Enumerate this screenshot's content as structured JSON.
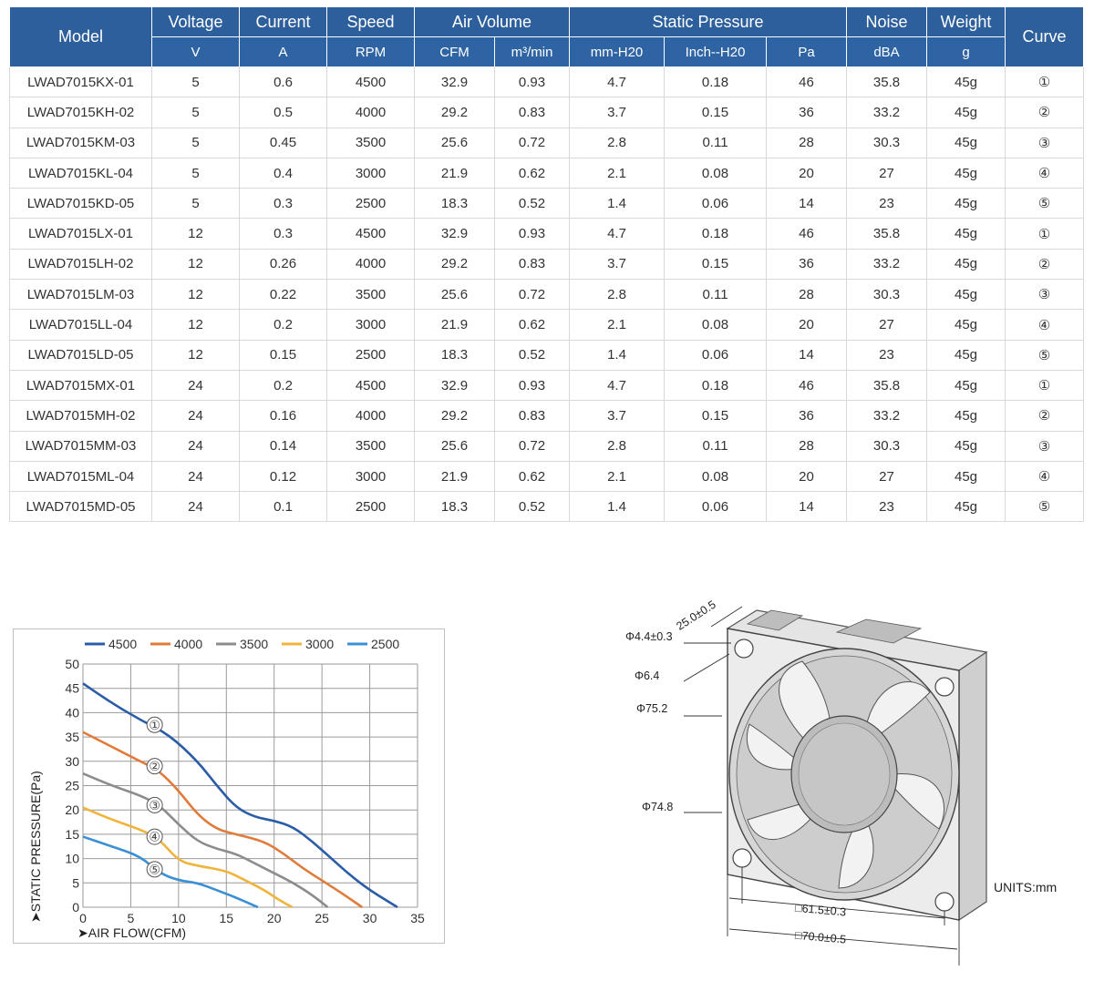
{
  "table": {
    "headers": {
      "model": "Model",
      "voltage": "Voltage",
      "current": "Current",
      "speed": "Speed",
      "air_volume": "Air Volume",
      "static_pressure": "Static Pressure",
      "noise": "Noise",
      "weight": "Weight",
      "curve": "Curve"
    },
    "units": {
      "v": "V",
      "a": "A",
      "rpm": "RPM",
      "cfm": "CFM",
      "m3min": "m³/min",
      "mmh2o": "mm-H20",
      "inchh2o": "Inch--H20",
      "pa": "Pa",
      "dba": "dBA",
      "g": "g"
    },
    "rows": [
      [
        "LWAD7015KX-01",
        "5",
        "0.6",
        "4500",
        "32.9",
        "0.93",
        "4.7",
        "0.18",
        "46",
        "35.8",
        "45g",
        "①"
      ],
      [
        "LWAD7015KH-02",
        "5",
        "0.5",
        "4000",
        "29.2",
        "0.83",
        "3.7",
        "0.15",
        "36",
        "33.2",
        "45g",
        "②"
      ],
      [
        "LWAD7015KM-03",
        "5",
        "0.45",
        "3500",
        "25.6",
        "0.72",
        "2.8",
        "0.11",
        "28",
        "30.3",
        "45g",
        "③"
      ],
      [
        "LWAD7015KL-04",
        "5",
        "0.4",
        "3000",
        "21.9",
        "0.62",
        "2.1",
        "0.08",
        "20",
        "27",
        "45g",
        "④"
      ],
      [
        "LWAD7015KD-05",
        "5",
        "0.3",
        "2500",
        "18.3",
        "0.52",
        "1.4",
        "0.06",
        "14",
        "23",
        "45g",
        "⑤"
      ],
      [
        "LWAD7015LX-01",
        "12",
        "0.3",
        "4500",
        "32.9",
        "0.93",
        "4.7",
        "0.18",
        "46",
        "35.8",
        "45g",
        "①"
      ],
      [
        "LWAD7015LH-02",
        "12",
        "0.26",
        "4000",
        "29.2",
        "0.83",
        "3.7",
        "0.15",
        "36",
        "33.2",
        "45g",
        "②"
      ],
      [
        "LWAD7015LM-03",
        "12",
        "0.22",
        "3500",
        "25.6",
        "0.72",
        "2.8",
        "0.11",
        "28",
        "30.3",
        "45g",
        "③"
      ],
      [
        "LWAD7015LL-04",
        "12",
        "0.2",
        "3000",
        "21.9",
        "0.62",
        "2.1",
        "0.08",
        "20",
        "27",
        "45g",
        "④"
      ],
      [
        "LWAD7015LD-05",
        "12",
        "0.15",
        "2500",
        "18.3",
        "0.52",
        "1.4",
        "0.06",
        "14",
        "23",
        "45g",
        "⑤"
      ],
      [
        "LWAD7015MX-01",
        "24",
        "0.2",
        "4500",
        "32.9",
        "0.93",
        "4.7",
        "0.18",
        "46",
        "35.8",
        "45g",
        "①"
      ],
      [
        "LWAD7015MH-02",
        "24",
        "0.16",
        "4000",
        "29.2",
        "0.83",
        "3.7",
        "0.15",
        "36",
        "33.2",
        "45g",
        "②"
      ],
      [
        "LWAD7015MM-03",
        "24",
        "0.14",
        "3500",
        "25.6",
        "0.72",
        "2.8",
        "0.11",
        "28",
        "30.3",
        "45g",
        "③"
      ],
      [
        "LWAD7015ML-04",
        "24",
        "0.12",
        "3000",
        "21.9",
        "0.62",
        "2.1",
        "0.08",
        "20",
        "27",
        "45g",
        "④"
      ],
      [
        "LWAD7015MD-05",
        "24",
        "0.1",
        "2500",
        "18.3",
        "0.52",
        "1.4",
        "0.06",
        "14",
        "23",
        "45g",
        "⑤"
      ]
    ],
    "colors": {
      "header_bg": "#2c5f9c",
      "header_text": "#ffffff",
      "grid": "#d9d9d9"
    }
  },
  "chart_data": {
    "type": "line",
    "title": "",
    "xlabel": "➤AIR FLOW(CFM)",
    "ylabel": "➤STATIC PRESSURE(Pa)",
    "xlim": [
      0,
      35
    ],
    "ylim": [
      0,
      50
    ],
    "xticks": [
      "0",
      "5",
      "10",
      "15",
      "20",
      "25",
      "30",
      "35"
    ],
    "yticks": [
      "0",
      "5",
      "10",
      "15",
      "20",
      "25",
      "30",
      "35",
      "40",
      "45",
      "50"
    ],
    "grid": true,
    "legend_position": "top",
    "series": [
      {
        "name": "4500",
        "color": "#2a5ca8",
        "curve_label": "①",
        "label_at": [
          7.5,
          37.5
        ],
        "points": [
          [
            0,
            46
          ],
          [
            3,
            42
          ],
          [
            6,
            38.5
          ],
          [
            9,
            35.5
          ],
          [
            12,
            30
          ],
          [
            14,
            25
          ],
          [
            16,
            20.5
          ],
          [
            18,
            18.5
          ],
          [
            20,
            17.8
          ],
          [
            22,
            16.5
          ],
          [
            24,
            13.5
          ],
          [
            26,
            10
          ],
          [
            28,
            6.5
          ],
          [
            30,
            3.5
          ],
          [
            32.9,
            0
          ]
        ]
      },
      {
        "name": "4000",
        "color": "#e07b39",
        "curve_label": "②",
        "label_at": [
          7.5,
          29
        ],
        "points": [
          [
            0,
            36
          ],
          [
            3,
            33
          ],
          [
            6,
            30
          ],
          [
            8,
            28
          ],
          [
            10,
            24
          ],
          [
            12,
            19
          ],
          [
            14,
            16
          ],
          [
            16,
            15
          ],
          [
            19,
            13.5
          ],
          [
            21,
            11
          ],
          [
            23,
            8
          ],
          [
            25,
            5.5
          ],
          [
            27,
            3
          ],
          [
            29.2,
            0
          ]
        ]
      },
      {
        "name": "3500",
        "color": "#8c8c8c",
        "curve_label": "③",
        "label_at": [
          7.5,
          21
        ],
        "points": [
          [
            0,
            27.5
          ],
          [
            3,
            25
          ],
          [
            6,
            23
          ],
          [
            8,
            21
          ],
          [
            10,
            17
          ],
          [
            12,
            13.5
          ],
          [
            14,
            12
          ],
          [
            16,
            11
          ],
          [
            18,
            9
          ],
          [
            20,
            7
          ],
          [
            22,
            5
          ],
          [
            24,
            2.5
          ],
          [
            25.6,
            0
          ]
        ]
      },
      {
        "name": "3000",
        "color": "#f0b43c",
        "curve_label": "④",
        "label_at": [
          7.5,
          14.5
        ],
        "points": [
          [
            0,
            20.5
          ],
          [
            3,
            18
          ],
          [
            6,
            16
          ],
          [
            8,
            14
          ],
          [
            10,
            9.5
          ],
          [
            12,
            8.5
          ],
          [
            15,
            7.5
          ],
          [
            17,
            5.5
          ],
          [
            19,
            3.5
          ],
          [
            20.5,
            1.5
          ],
          [
            21.9,
            0
          ]
        ]
      },
      {
        "name": "2500",
        "color": "#3b8fd4",
        "curve_label": "⑤",
        "label_at": [
          7.5,
          7.8
        ],
        "points": [
          [
            0,
            14.5
          ],
          [
            3,
            12.5
          ],
          [
            6,
            10.5
          ],
          [
            8,
            7
          ],
          [
            10,
            5.5
          ],
          [
            12,
            5
          ],
          [
            14,
            3.5
          ],
          [
            16,
            2
          ],
          [
            18.3,
            0
          ]
        ]
      }
    ]
  },
  "drawing": {
    "dim_depth": "25.0±0.5",
    "dim_hole": "Φ4.4±0.3",
    "dim_hole2": "Φ6.4",
    "dim_outer": "Φ75.2",
    "dim_inner": "Φ74.8",
    "dim_pitch": "□61.5±0.3",
    "dim_size": "□70.0±0.5",
    "units": "UNITS:mm"
  }
}
